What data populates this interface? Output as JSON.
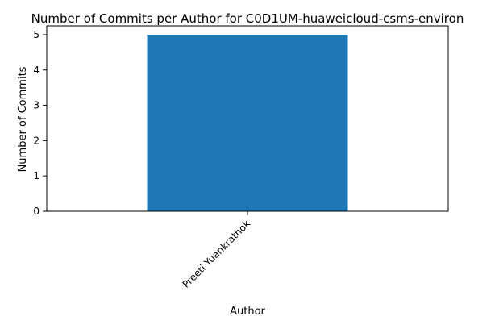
{
  "chart_data": {
    "type": "bar",
    "title": "Number of Commits per Author for C0D1UM-huaweicloud-csms-environ",
    "xlabel": "Author",
    "ylabel": "Number of Commits",
    "categories": [
      "Preeti Yuankrathok"
    ],
    "values": [
      5
    ],
    "ylim": [
      0,
      5.25
    ],
    "yticks": [
      0,
      1,
      2,
      3,
      4,
      5
    ],
    "bar_color": "#1f77b4",
    "grid": false,
    "legend": "none"
  }
}
